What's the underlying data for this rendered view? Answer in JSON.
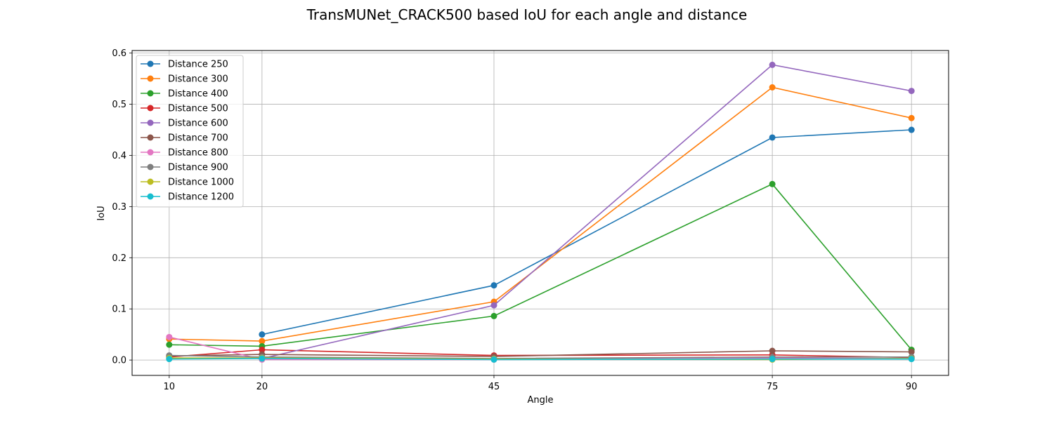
{
  "chart_data": {
    "type": "line",
    "title": "TransMUNet_CRACK500 based IoU for each angle and distance",
    "xlabel": "Angle",
    "ylabel": "IoU",
    "x": [
      10,
      20,
      45,
      75,
      90
    ],
    "x_ticks": [
      "10",
      "20",
      "45",
      "75",
      "90"
    ],
    "y_ticks": [
      "0.0",
      "0.1",
      "0.2",
      "0.3",
      "0.4",
      "0.5",
      "0.6"
    ],
    "xlim": [
      6,
      94
    ],
    "ylim": [
      -0.03,
      0.605
    ],
    "grid": true,
    "legend_position": "upper-left",
    "marker": "circle",
    "series": [
      {
        "name": "Distance 250",
        "color": "#1f77b4",
        "x": [
          20,
          45,
          75,
          90
        ],
        "values": [
          0.05,
          0.146,
          0.435,
          0.45
        ]
      },
      {
        "name": "Distance 300",
        "color": "#ff7f0e",
        "x": [
          10,
          20,
          45,
          75,
          90
        ],
        "values": [
          0.041,
          0.037,
          0.114,
          0.533,
          0.473
        ]
      },
      {
        "name": "Distance 400",
        "color": "#2ca02c",
        "x": [
          10,
          20,
          45,
          75,
          90
        ],
        "values": [
          0.03,
          0.027,
          0.086,
          0.344,
          0.02
        ]
      },
      {
        "name": "Distance 500",
        "color": "#d62728",
        "x": [
          10,
          20,
          45,
          75,
          90
        ],
        "values": [
          0.006,
          0.02,
          0.009,
          0.01,
          0.005
        ]
      },
      {
        "name": "Distance 600",
        "color": "#9467bd",
        "x": [
          20,
          45,
          75,
          90
        ],
        "values": [
          0.003,
          0.107,
          0.577,
          0.526
        ]
      },
      {
        "name": "Distance 700",
        "color": "#8c564b",
        "x": [
          10,
          20,
          45,
          75,
          90
        ],
        "values": [
          0.008,
          0.011,
          0.007,
          0.018,
          0.016
        ]
      },
      {
        "name": "Distance 800",
        "color": "#e377c2",
        "x": [
          10,
          20,
          45,
          75,
          90
        ],
        "values": [
          0.045,
          0.001,
          0.001,
          0.004,
          0.003
        ]
      },
      {
        "name": "Distance 900",
        "color": "#7f7f7f",
        "x": [
          10,
          20,
          45,
          75,
          90
        ],
        "values": [
          0.009,
          0.006,
          0.003,
          0.006,
          0.006
        ]
      },
      {
        "name": "Distance 1000",
        "color": "#bcbd22",
        "x": [
          10,
          20,
          45,
          75,
          90
        ],
        "values": [
          0.004,
          0.004,
          0.002,
          0.001,
          0.003
        ]
      },
      {
        "name": "Distance 1200",
        "color": "#17becf",
        "x": [
          10,
          20,
          45,
          75,
          90
        ],
        "values": [
          0.002,
          0.003,
          0.001,
          0.002,
          0.002
        ]
      }
    ]
  }
}
